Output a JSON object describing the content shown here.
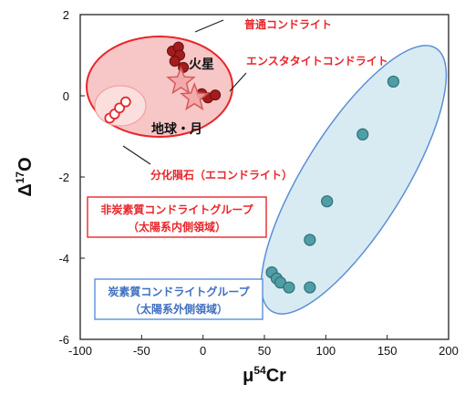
{
  "chart_data": {
    "type": "scatter",
    "xlabel_base": "μ",
    "xlabel_sup": "54",
    "xlabel_tail": "Cr",
    "ylabel_base": "Δ",
    "ylabel_sup": "17",
    "ylabel_tail": "O",
    "xlim": [
      -100,
      200
    ],
    "ylim": [
      -6,
      2
    ],
    "xticks": [
      -100,
      -50,
      0,
      50,
      100,
      150,
      200
    ],
    "xtick_labels": [
      "-100",
      "-50",
      "0",
      "50",
      "100",
      "150",
      "200"
    ],
    "yticks": [
      -6,
      -4,
      -2,
      0,
      2
    ],
    "ytick_labels": [
      "-6",
      "-4",
      "-2",
      "0",
      "2"
    ],
    "series": [
      {
        "name": "普通コンドライト",
        "marker": "filled-dark-red-circle",
        "x": [
          -25,
          -20,
          -19,
          -23,
          -16
        ],
        "y": [
          1.1,
          1.2,
          1.0,
          0.85,
          0.7
        ]
      },
      {
        "name": "エンスタタイトコンドライト",
        "marker": "filled-dark-red-circle",
        "x": [
          -1,
          4,
          10
        ],
        "y": [
          0.05,
          -0.05,
          0.02
        ]
      },
      {
        "name": "分化隕石（エコンドライト）",
        "marker": "open-red-circle",
        "x": [
          -76,
          -72,
          -68,
          -63
        ],
        "y": [
          -0.55,
          -0.45,
          -0.3,
          -0.15
        ]
      },
      {
        "name": "炭素質コンドライトグループ",
        "marker": "teal-circle",
        "x": [
          56,
          60,
          63,
          70,
          87,
          87,
          101,
          130,
          155
        ],
        "y": [
          -4.35,
          -4.5,
          -4.6,
          -4.72,
          -4.72,
          -3.55,
          -2.6,
          -0.95,
          0.35
        ]
      }
    ],
    "stars": [
      {
        "label": "火星",
        "x": -18,
        "y": 0.35
      },
      {
        "label": "地球・月",
        "x": -7,
        "y": -0.05
      }
    ],
    "annotations": {
      "ordinary": "普通コンドライト",
      "enstatite": "エンスタタイトコンドライト",
      "achondrite": "分化隕石（エコンドライト）",
      "mars": "火星",
      "earth_moon": "地球・月",
      "nc_line1": "非炭素質コンドライトグループ",
      "nc_line2": "（太陽系内側領域）",
      "cc_line1": "炭素質コンドライトグループ",
      "cc_line2": "（太陽系外側領域）"
    },
    "colors": {
      "nc_red": "#e8262b",
      "nc_fill": "#f7c6c6",
      "dark_red_point": "#a51c1c",
      "cc_blue": "#5b8ed6",
      "cc_fill": "#d8ebf2",
      "teal_point": "#4f9ea6",
      "star_fill": "#f2a6a6",
      "star_stroke": "#d55a5a"
    },
    "grid": false,
    "legend": "none"
  }
}
